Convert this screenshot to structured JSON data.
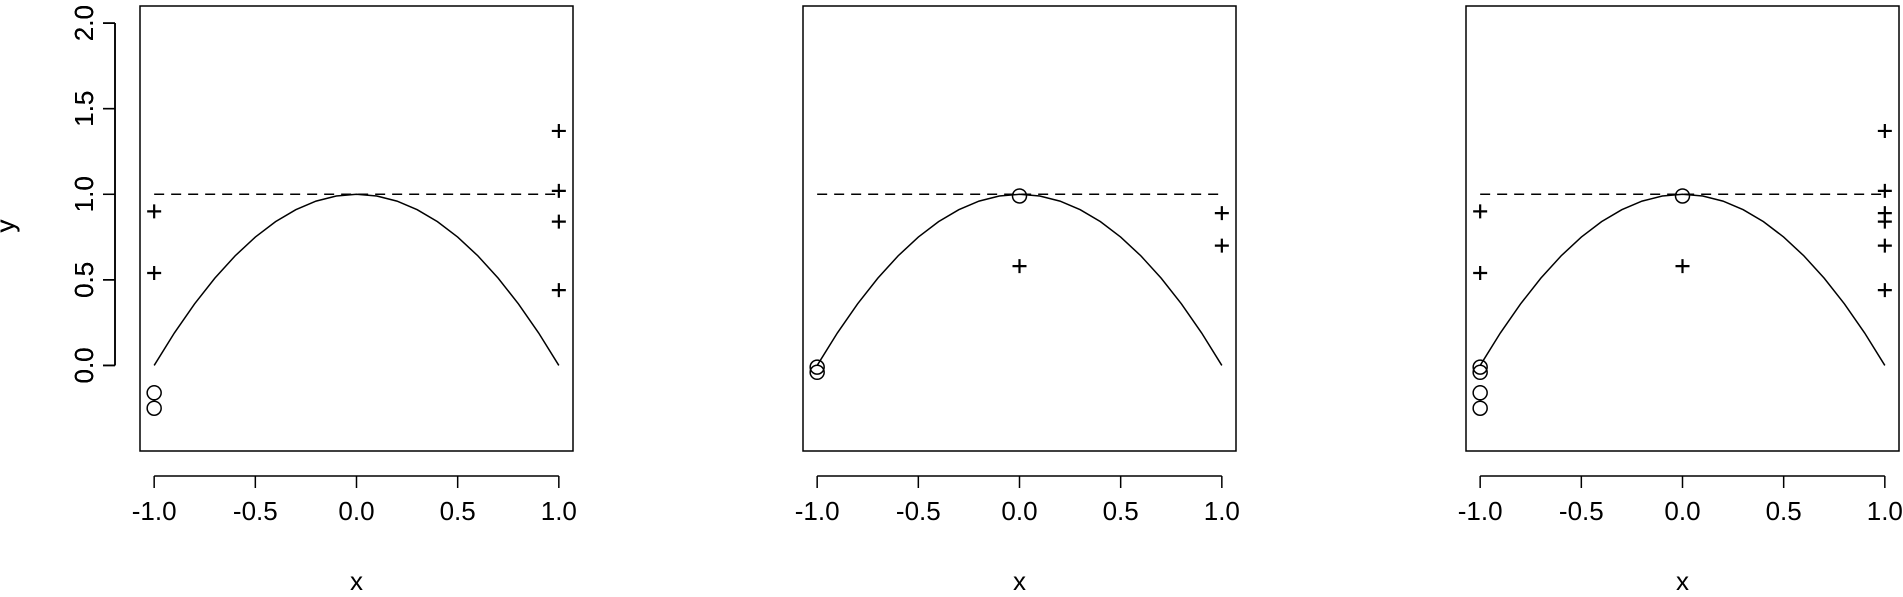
{
  "chart_data": [
    {
      "type": "scatter",
      "xlabel": "x",
      "ylabel": "y",
      "xlim": [
        -1.07,
        1.07
      ],
      "ylim": [
        -0.5,
        2.1
      ],
      "x_ticks": [
        "-1.0",
        "-0.5",
        "0.0",
        "0.5",
        "1.0"
      ],
      "y_ticks": [
        "0.0",
        "0.5",
        "1.0",
        "1.5",
        "2.0"
      ],
      "curve": "y = 1 - x^2",
      "reference_line": {
        "y": 1.0,
        "x_range": [
          -1.0,
          1.0
        ],
        "style": "dashed"
      },
      "series": [
        {
          "marker": "circle",
          "points": [
            [
              -1.0,
              -0.16
            ],
            [
              -1.0,
              -0.25
            ]
          ]
        },
        {
          "marker": "plus",
          "points": [
            [
              -1.0,
              0.9
            ],
            [
              -1.0,
              0.54
            ],
            [
              1.0,
              1.37
            ],
            [
              1.0,
              1.02
            ],
            [
              1.0,
              0.84
            ],
            [
              1.0,
              0.44
            ]
          ]
        }
      ]
    },
    {
      "type": "scatter",
      "xlabel": "x",
      "ylabel": "y",
      "xlim": [
        -1.07,
        1.07
      ],
      "ylim": [
        -0.5,
        2.1
      ],
      "x_ticks": [
        "-1.0",
        "-0.5",
        "0.0",
        "0.5",
        "1.0"
      ],
      "y_ticks": [
        "0.0",
        "0.5",
        "1.0",
        "1.5",
        "2.0"
      ],
      "curve": "y = 1 - x^2",
      "reference_line": {
        "y": 1.0,
        "x_range": [
          -1.0,
          1.0
        ],
        "style": "dashed"
      },
      "series": [
        {
          "marker": "circle",
          "points": [
            [
              -1.0,
              -0.01
            ],
            [
              -1.0,
              -0.04
            ],
            [
              0.0,
              0.99
            ]
          ]
        },
        {
          "marker": "plus",
          "points": [
            [
              0.0,
              0.58
            ],
            [
              1.0,
              0.89
            ],
            [
              1.0,
              0.7
            ]
          ]
        }
      ]
    },
    {
      "type": "scatter",
      "xlabel": "x",
      "ylabel": "y",
      "xlim": [
        -1.07,
        1.07
      ],
      "ylim": [
        -0.5,
        2.1
      ],
      "x_ticks": [
        "-1.0",
        "-0.5",
        "0.0",
        "0.5",
        "1.0"
      ],
      "y_ticks": [
        "0.0",
        "0.5",
        "1.0",
        "1.5",
        "2.0"
      ],
      "curve": "y = 1 - x^2",
      "reference_line": {
        "y": 1.0,
        "x_range": [
          -1.0,
          1.0
        ],
        "style": "dashed"
      },
      "series": [
        {
          "marker": "circle",
          "points": [
            [
              -1.0,
              -0.01
            ],
            [
              -1.0,
              -0.04
            ],
            [
              -1.0,
              -0.16
            ],
            [
              -1.0,
              -0.25
            ],
            [
              0.0,
              0.99
            ]
          ]
        },
        {
          "marker": "plus",
          "points": [
            [
              -1.0,
              0.9
            ],
            [
              -1.0,
              0.54
            ],
            [
              0.0,
              0.58
            ],
            [
              1.0,
              1.37
            ],
            [
              1.0,
              1.02
            ],
            [
              1.0,
              0.89
            ],
            [
              1.0,
              0.84
            ],
            [
              1.0,
              0.7
            ],
            [
              1.0,
              0.44
            ]
          ]
        }
      ]
    }
  ]
}
